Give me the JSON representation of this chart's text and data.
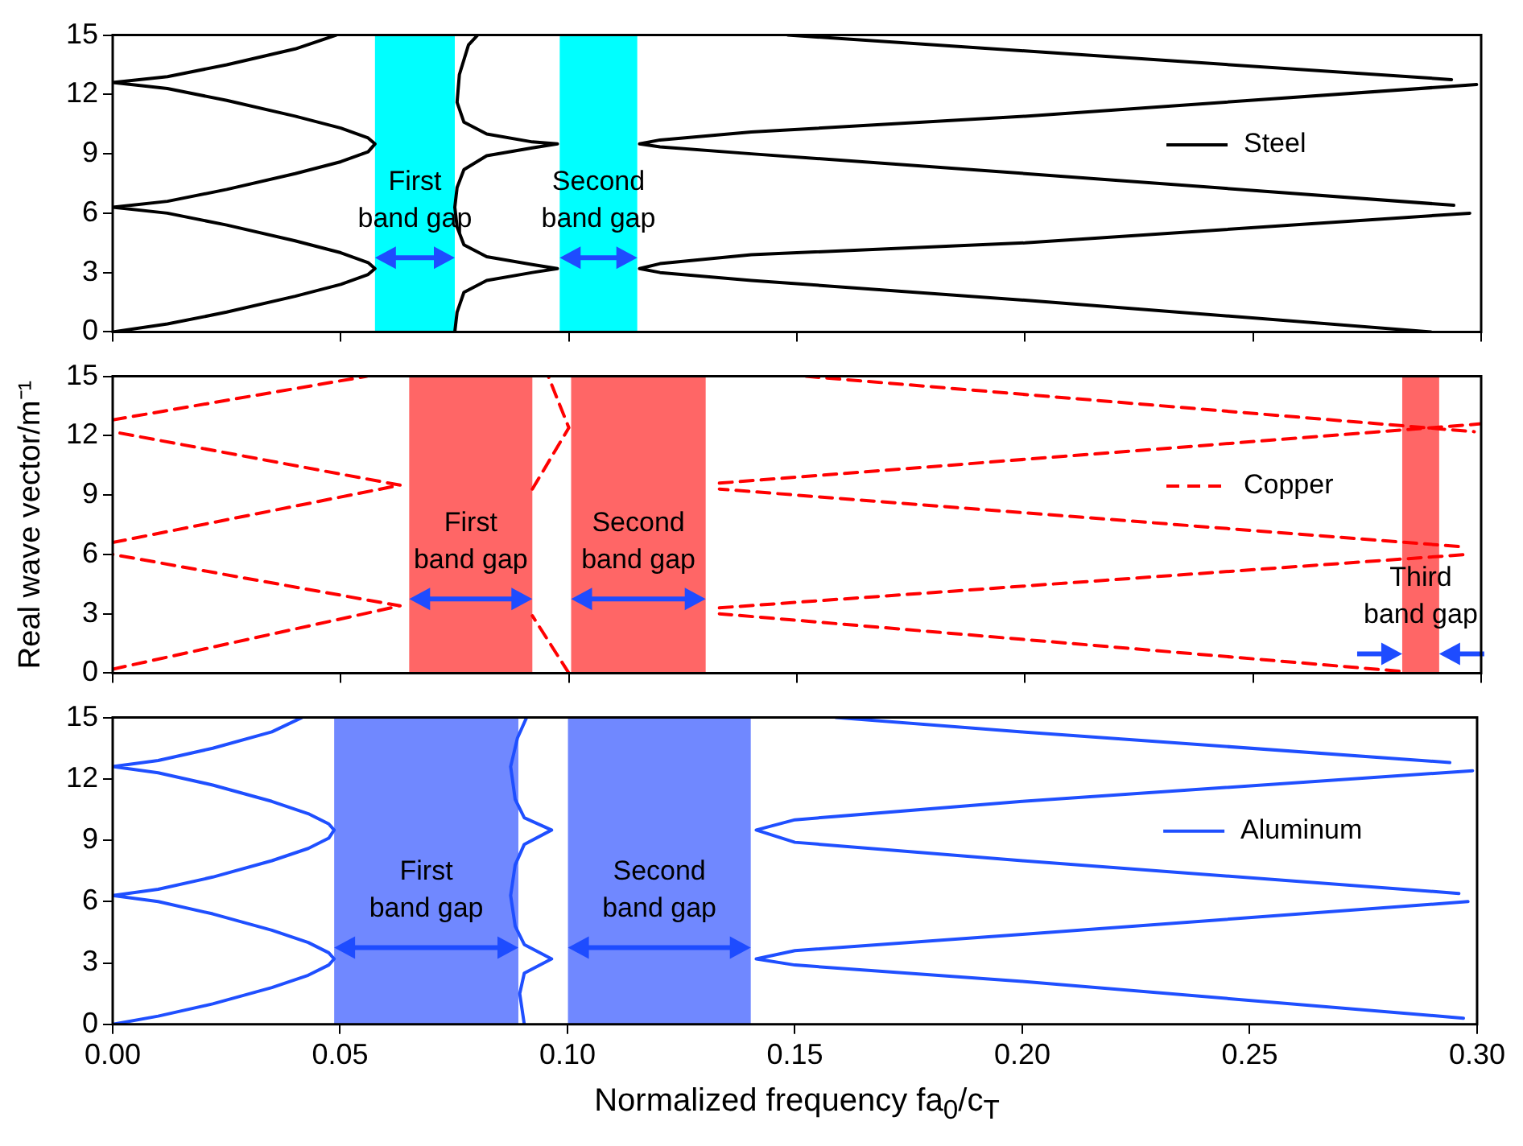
{
  "chart_data": [
    {
      "type": "line",
      "xlim": [
        0,
        0.3
      ],
      "xticks": [
        {
          "value": 0,
          "label": null
        },
        {
          "value": 0.05,
          "label": null
        },
        {
          "value": 0.1,
          "label": null
        },
        {
          "value": 0.15,
          "label": null
        },
        {
          "value": 0.2,
          "label": null
        },
        {
          "value": 0.25,
          "label": null
        },
        {
          "value": 0.3,
          "label": null
        }
      ],
      "ylim": [
        0,
        15
      ],
      "yticks": [
        0,
        3,
        6,
        9,
        12,
        15
      ],
      "tick_labels": "y",
      "legend": "right",
      "line_style": "solid",
      "series": [
        {
          "name": "Steel",
          "color": "#000000",
          "x": [
            0,
            0.012,
            0.025,
            0.04,
            0.05,
            0.056,
            0.0575,
            0.056,
            0.05,
            0.04,
            0.025,
            0.012,
            0,
            0.012,
            0.025,
            0.04,
            0.05,
            0.056,
            0.0575,
            0.056,
            0.05,
            0.04,
            0.025,
            0.012,
            0,
            0.012,
            0.025,
            0.04,
            0.049,
            null,
            0.075,
            0.0755,
            0.077,
            0.082,
            0.092,
            0.0975,
            0.092,
            0.082,
            0.077,
            0.0755,
            0.075,
            0.0755,
            0.077,
            0.082,
            0.092,
            0.0975,
            0.092,
            0.082,
            0.077,
            0.0755,
            0.076,
            0.078,
            0.08,
            null,
            0.289,
            0.2,
            0.14,
            0.12,
            0.1155,
            0.12,
            0.14,
            0.2,
            0.2975,
            null,
            0.294,
            0.2,
            0.14,
            0.12,
            0.1155,
            0.12,
            0.14,
            0.2,
            0.299,
            null,
            0.148,
            0.2,
            0.2935
          ],
          "values": [
            0,
            0.4,
            1.0,
            1.8,
            2.4,
            2.9,
            3.2,
            3.5,
            4.0,
            4.6,
            5.4,
            6.0,
            6.3,
            6.6,
            7.2,
            8.0,
            8.6,
            9.1,
            9.5,
            9.8,
            10.3,
            10.9,
            11.7,
            12.3,
            12.6,
            12.9,
            13.5,
            14.3,
            15,
            null,
            0,
            1.0,
            2.0,
            2.6,
            3.0,
            3.2,
            3.4,
            3.8,
            4.4,
            5.3,
            6.3,
            7.3,
            8.2,
            8.9,
            9.3,
            9.5,
            9.6,
            10.0,
            10.6,
            11.6,
            13,
            14.5,
            15,
            null,
            0,
            1.6,
            2.6,
            3.0,
            3.2,
            3.45,
            3.9,
            4.5,
            6.0,
            null,
            6.4,
            8.0,
            9.0,
            9.35,
            9.5,
            9.7,
            10.1,
            10.9,
            12.5,
            null,
            15,
            14.2,
            12.75
          ]
        }
      ],
      "bands": [
        {
          "axis": "x",
          "from": 0.0575,
          "to": 0.075,
          "label": "First band gap",
          "color": "#00ffff"
        },
        {
          "axis": "x",
          "from": 0.098,
          "to": 0.115,
          "label": "Second band gap",
          "color": "#00ffff"
        }
      ]
    },
    {
      "type": "line",
      "ylabel": "Real wave vector/m⁻¹",
      "xlim": [
        0,
        0.3
      ],
      "xticks": [
        {
          "value": 0,
          "label": null
        },
        {
          "value": 0.05,
          "label": null
        },
        {
          "value": 0.1,
          "label": null
        },
        {
          "value": 0.15,
          "label": null
        },
        {
          "value": 0.2,
          "label": null
        },
        {
          "value": 0.25,
          "label": null
        },
        {
          "value": 0.3,
          "label": null
        }
      ],
      "ylim": [
        0,
        15
      ],
      "yticks": [
        0,
        3,
        6,
        9,
        12,
        15
      ],
      "tick_labels": "y",
      "legend": "right",
      "line_style": "dashed",
      "series": [
        {
          "name": "Copper",
          "color": "#ff0000",
          "x": [
            0,
            0.063,
            0,
            null,
            0,
            0.063,
            0,
            null,
            0,
            0.0557,
            null,
            0.1,
            0.092,
            null,
            0.092,
            0.1,
            0.0955,
            null,
            0.282,
            0.133,
            null,
            0.133,
            0.297,
            null,
            0.295,
            0.133,
            null,
            0.133,
            0.3,
            null,
            0.152,
            0.2985
          ],
          "values": [
            0.2,
            3.4,
            6.0,
            null,
            6.6,
            9.5,
            12.2,
            null,
            12.8,
            15,
            null,
            0,
            2.9,
            null,
            9.3,
            12.4,
            15,
            null,
            0.1,
            3.0,
            null,
            3.3,
            6.0,
            null,
            6.4,
            9.3,
            null,
            9.6,
            12.6,
            null,
            15,
            12.2
          ]
        }
      ],
      "bands": [
        {
          "axis": "x",
          "from": 0.065,
          "to": 0.092,
          "label": "First band gap",
          "color": "#ff6666"
        },
        {
          "axis": "x",
          "from": 0.1005,
          "to": 0.13,
          "label": "Second band gap",
          "color": "#ff6666"
        },
        {
          "axis": "x",
          "from": 0.2827,
          "to": 0.2908,
          "label": "Third band gap",
          "color": "#ff6666"
        }
      ]
    },
    {
      "type": "line",
      "xlabel": "Normalized frequency fa$_{0}$/c$_{T}$",
      "xlim": [
        0,
        0.3
      ],
      "xticks": [
        {
          "value": 0,
          "label": "0.00"
        },
        {
          "value": 0.05,
          "label": "0.05"
        },
        {
          "value": 0.1,
          "label": "0.10"
        },
        {
          "value": 0.15,
          "label": "0.15"
        },
        {
          "value": 0.2,
          "label": "0.20"
        },
        {
          "value": 0.25,
          "label": "0.25"
        },
        {
          "value": 0.3,
          "label": "0.30"
        }
      ],
      "ylim": [
        0,
        15
      ],
      "yticks": [
        0,
        3,
        6,
        9,
        12,
        15
      ],
      "legend": "right",
      "line_style": "solid",
      "series": [
        {
          "name": "Aluminum",
          "color": "#1f4fff",
          "x": [
            0,
            0.01,
            0.022,
            0.035,
            0.043,
            0.0475,
            0.0487,
            0.0475,
            0.043,
            0.035,
            0.022,
            0.01,
            0,
            0.01,
            0.022,
            0.035,
            0.043,
            0.0475,
            0.0487,
            0.0475,
            0.043,
            0.035,
            0.022,
            0.01,
            0,
            0.01,
            0.022,
            0.035,
            0.0416,
            null,
            0.0905,
            0.0895,
            0.0905,
            0.0965,
            0.0905,
            0.0885,
            0.0875,
            0.0885,
            0.0905,
            0.0965,
            0.0905,
            0.0885,
            0.0875,
            0.089,
            0.091,
            null,
            0.297,
            0.2,
            0.15,
            0.1415,
            0.15,
            0.2,
            0.298,
            null,
            0.296,
            0.2,
            0.15,
            0.1415,
            0.15,
            0.2,
            0.299,
            null,
            0.159,
            0.2,
            0.294
          ],
          "values": [
            0,
            0.4,
            1.0,
            1.8,
            2.4,
            2.9,
            3.2,
            3.5,
            4.0,
            4.6,
            5.4,
            6.0,
            6.3,
            6.6,
            7.2,
            8.0,
            8.6,
            9.1,
            9.5,
            9.8,
            10.3,
            10.9,
            11.7,
            12.3,
            12.6,
            12.9,
            13.5,
            14.3,
            15,
            null,
            0,
            1.5,
            2.5,
            3.2,
            3.9,
            4.8,
            6.3,
            7.8,
            8.8,
            9.5,
            10.1,
            11,
            12.6,
            14,
            15,
            null,
            0.3,
            2.1,
            2.9,
            3.2,
            3.6,
            4.4,
            6.0,
            null,
            6.4,
            8.0,
            8.9,
            9.5,
            10.0,
            10.9,
            12.4,
            null,
            15,
            14.3,
            12.8
          ]
        }
      ],
      "bands": [
        {
          "axis": "x",
          "from": 0.0487,
          "to": 0.0892,
          "label": "First band gap",
          "color": "#7088ff"
        },
        {
          "axis": "x",
          "from": 0.1001,
          "to": 0.1403,
          "label": "Second band gap",
          "color": "#7088ff"
        }
      ]
    }
  ]
}
